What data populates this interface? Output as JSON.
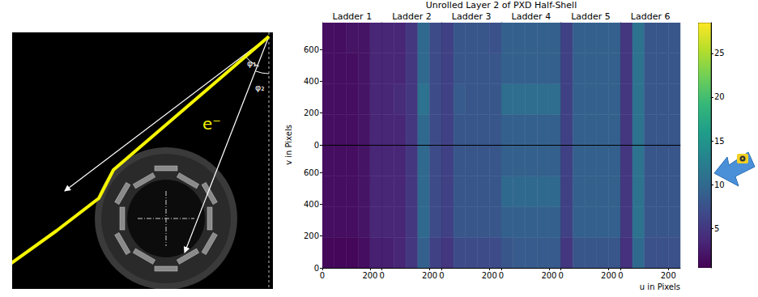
{
  "diagram": {
    "particle_label": "e⁻",
    "angle_labels": [
      "φ₁",
      "φ₂"
    ]
  },
  "chart_data": {
    "type": "heatmap",
    "title": "Unrolled Layer 2 of PXD Half-Shell",
    "xlabel": "u in Pixels",
    "ylabel": "v in Pixels",
    "u_bins": [
      0,
      50,
      100,
      150,
      200,
      250
    ],
    "v_bins": [
      0,
      192,
      384,
      576,
      768
    ],
    "xlim": [
      0,
      250
    ],
    "ylim": [
      0,
      768
    ],
    "xticks": [
      0,
      200
    ],
    "yticks": [
      0,
      200,
      400,
      600
    ],
    "colorbar": {
      "range": [
        0.5,
        28.5
      ],
      "ticks": [
        5,
        10,
        15,
        20,
        25
      ]
    },
    "panels": [
      {
        "name": "Ladder 1",
        "upper": [
          [
            1.5,
            1.5,
            1.5,
            2,
            3.5
          ],
          [
            1.5,
            1.5,
            1.5,
            2,
            3.5
          ],
          [
            1.5,
            1.5,
            1.5,
            2,
            3.5
          ],
          [
            1.5,
            1.5,
            2,
            2,
            3.5
          ]
        ],
        "lower": [
          [
            1,
            1,
            1,
            1.5,
            3
          ],
          [
            1.5,
            1.5,
            1.5,
            2,
            3.5
          ],
          [
            1.5,
            1.5,
            1.5,
            2,
            3.5
          ],
          [
            1.5,
            1.5,
            1.5,
            2,
            3.5
          ]
        ]
      },
      {
        "name": "Ladder 2",
        "upper": [
          [
            3.5,
            3.5,
            5,
            10,
            7
          ],
          [
            3.5,
            4,
            5,
            11,
            7
          ],
          [
            3.5,
            3.5,
            5,
            10,
            7
          ],
          [
            3.5,
            3.5,
            5,
            10,
            7
          ]
        ],
        "lower": [
          [
            3,
            3.5,
            5,
            9,
            6
          ],
          [
            3.5,
            3.5,
            5,
            10,
            7
          ],
          [
            3.5,
            3.5,
            5,
            10,
            7
          ],
          [
            3.5,
            3.5,
            5,
            10,
            7
          ]
        ]
      },
      {
        "name": "Ladder 3",
        "upper": [
          [
            6,
            8,
            8,
            8,
            8
          ],
          [
            6,
            8.5,
            8,
            8,
            8
          ],
          [
            6,
            8,
            8,
            8,
            8
          ],
          [
            6,
            8,
            8,
            8,
            7.5
          ]
        ],
        "lower": [
          [
            5,
            7,
            7,
            7,
            7
          ],
          [
            6,
            8,
            8,
            8,
            8
          ],
          [
            6,
            8,
            8,
            8,
            8
          ],
          [
            6,
            8,
            8,
            8,
            8
          ]
        ]
      },
      {
        "name": "Ladder 4",
        "upper": [
          [
            9,
            9,
            9,
            9,
            9
          ],
          [
            10.5,
            10.5,
            10.5,
            10.5,
            10.5
          ],
          [
            9,
            9,
            9,
            9,
            9
          ],
          [
            9,
            9,
            9,
            9,
            9
          ]
        ],
        "lower": [
          [
            8,
            8.5,
            8.5,
            8.5,
            8.5
          ],
          [
            9,
            9,
            9,
            9,
            9
          ],
          [
            10,
            10,
            10,
            10,
            10
          ],
          [
            9,
            9,
            9,
            9,
            9
          ]
        ]
      },
      {
        "name": "Ladder 5",
        "upper": [
          [
            6,
            9,
            9,
            9,
            9
          ],
          [
            6,
            9,
            9,
            9,
            9
          ],
          [
            6,
            9,
            9,
            9,
            9
          ],
          [
            6,
            9,
            9,
            9,
            9
          ]
        ],
        "lower": [
          [
            5,
            8,
            8,
            8,
            8
          ],
          [
            6,
            9,
            9,
            9,
            9
          ],
          [
            6,
            9,
            9,
            9,
            9
          ],
          [
            6,
            9,
            9,
            9,
            9
          ]
        ]
      },
      {
        "name": "Ladder 6",
        "upper": [
          [
            5,
            11,
            8,
            8,
            8
          ],
          [
            5,
            11,
            8,
            8,
            8
          ],
          [
            5,
            11,
            8,
            8,
            8
          ],
          [
            5,
            11,
            8,
            8,
            8
          ]
        ],
        "lower": [
          [
            4.5,
            10,
            7.5,
            7.5,
            7.5
          ],
          [
            5,
            11,
            8,
            8,
            8
          ],
          [
            5,
            11,
            8,
            8,
            8
          ],
          [
            5,
            11,
            8,
            8,
            8
          ]
        ]
      }
    ]
  }
}
